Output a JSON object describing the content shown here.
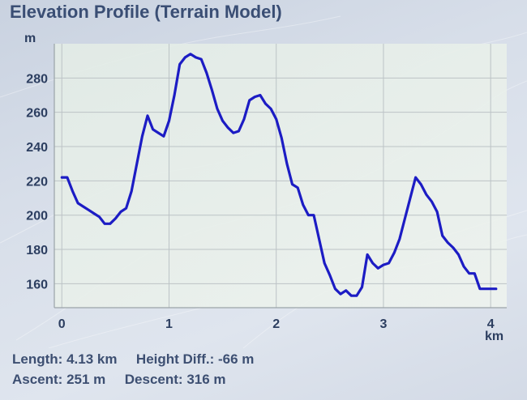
{
  "title": "Elevation Profile (Terrain Model)",
  "colors": {
    "line": "#1c1cc4",
    "text": "#3a4e74",
    "plot_bg": "#e8f0ea",
    "grid": "#bcc3c6"
  },
  "stats": {
    "length_label": "Length:",
    "length_value": "4.13 km",
    "height_diff_label": "Height Diff.:",
    "height_diff_value": "-66 m",
    "ascent_label": "Ascent:",
    "ascent_value": "251 m",
    "descent_label": "Descent:",
    "descent_value": "316 m"
  },
  "chart_data": {
    "type": "line",
    "title": "Elevation Profile (Terrain Model)",
    "xlabel": "km",
    "ylabel": "m",
    "xlim": [
      -0.07,
      4.15
    ],
    "ylim": [
      146,
      300
    ],
    "xticks": [
      0,
      1,
      2,
      3,
      4
    ],
    "yticks": [
      160,
      180,
      200,
      220,
      240,
      260,
      280
    ],
    "grid": true,
    "series": [
      {
        "x": [
          0.0,
          0.05,
          0.1,
          0.15,
          0.2,
          0.25,
          0.3,
          0.35,
          0.4,
          0.45,
          0.5,
          0.55,
          0.6,
          0.65,
          0.7,
          0.75,
          0.8,
          0.85,
          0.9,
          0.95,
          1.0,
          1.05,
          1.1,
          1.15,
          1.2,
          1.25,
          1.3,
          1.35,
          1.4,
          1.45,
          1.5,
          1.55,
          1.6,
          1.65,
          1.7,
          1.75,
          1.8,
          1.85,
          1.9,
          1.95,
          2.0,
          2.05,
          2.1,
          2.15,
          2.2,
          2.25,
          2.3,
          2.35,
          2.4,
          2.45,
          2.5,
          2.55,
          2.6,
          2.65,
          2.7,
          2.75,
          2.8,
          2.85,
          2.9,
          2.95,
          3.0,
          3.05,
          3.1,
          3.15,
          3.2,
          3.25,
          3.3,
          3.35,
          3.4,
          3.45,
          3.5,
          3.55,
          3.6,
          3.65,
          3.7,
          3.75,
          3.8,
          3.85,
          3.9,
          3.95,
          4.0,
          4.05
        ],
        "y": [
          222,
          222,
          214,
          207,
          205,
          203,
          201,
          199,
          195,
          195,
          198,
          202,
          204,
          214,
          230,
          246,
          258,
          250,
          248,
          246,
          255,
          270,
          288,
          292,
          294,
          292,
          291,
          283,
          273,
          262,
          255,
          251,
          248,
          249,
          256,
          267,
          269,
          270,
          265,
          262,
          256,
          245,
          230,
          218,
          216,
          206,
          200,
          200,
          186,
          172,
          165,
          157,
          154,
          156,
          153,
          153,
          158,
          177,
          172,
          169,
          171,
          172,
          178,
          186,
          198,
          210,
          222,
          218,
          212,
          208,
          202,
          188,
          184,
          181,
          177,
          170,
          166,
          166,
          157,
          157,
          157,
          157
        ]
      }
    ]
  }
}
